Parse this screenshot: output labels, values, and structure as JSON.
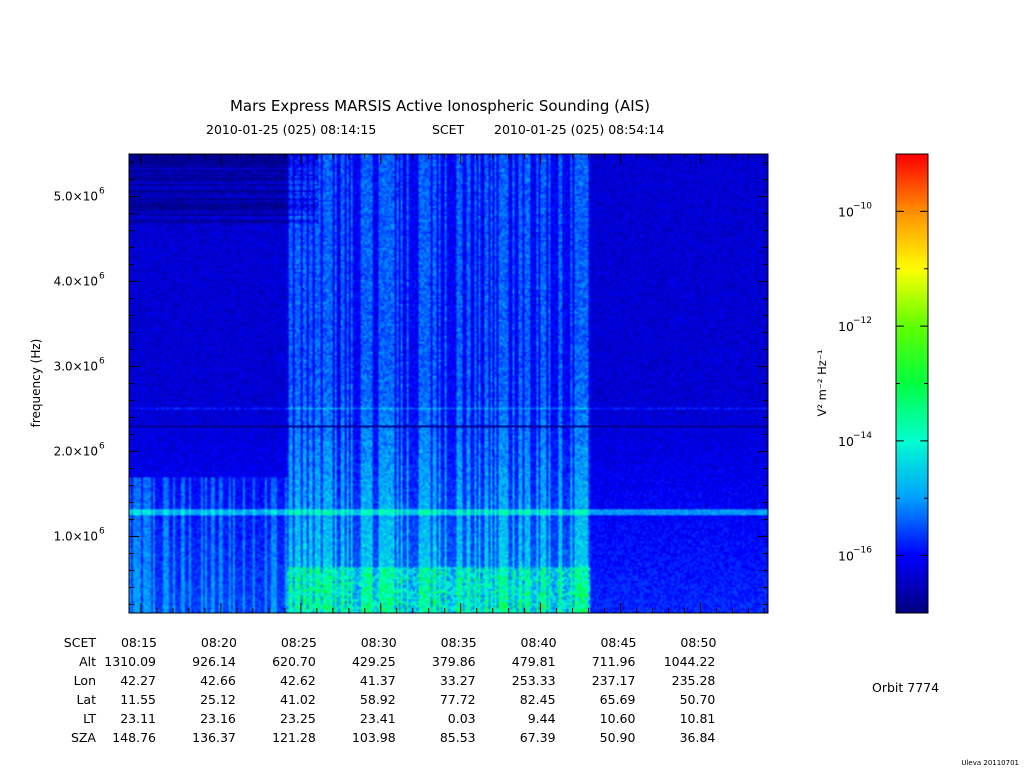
{
  "header": {
    "title": "Mars Express MARSIS Active Ionospheric Sounding (AIS)",
    "start_time": "2010-01-25 (025) 08:14:15",
    "time_system": "SCET",
    "end_time": "2010-01-25 (025) 08:54:14"
  },
  "footer": {
    "orbit": "Orbit 7774",
    "credit": "Uleva 20110701"
  },
  "chart_data": {
    "type": "heatmap",
    "title": "Mars Express MARSIS Active Ionospheric Sounding (AIS)",
    "ylabel": "frequency (Hz)",
    "ylim": [
      100000,
      5500000
    ],
    "y_ticks": [
      {
        "value": 1000000,
        "label_mant": "1.0×10",
        "label_exp": "6"
      },
      {
        "value": 2000000,
        "label_mant": "2.0×10",
        "label_exp": "6"
      },
      {
        "value": 3000000,
        "label_mant": "3.0×10",
        "label_exp": "6"
      },
      {
        "value": 4000000,
        "label_mant": "4.0×10",
        "label_exp": "6"
      },
      {
        "value": 5000000,
        "label_mant": "5.0×10",
        "label_exp": "6"
      }
    ],
    "x_start": "08:14:15",
    "x_end": "08:54:14",
    "xlim_minutes": [
      14.25,
      54.23
    ],
    "x_ticks": [
      "08:15",
      "08:20",
      "08:25",
      "08:30",
      "08:35",
      "08:40",
      "08:45",
      "08:50"
    ],
    "ephemeris_rows": [
      {
        "label": "SCET",
        "values": [
          "08:15",
          "08:20",
          "08:25",
          "08:30",
          "08:35",
          "08:40",
          "08:45",
          "08:50"
        ]
      },
      {
        "label": "Alt",
        "values": [
          "1310.09",
          "926.14",
          "620.70",
          "429.25",
          "379.86",
          "479.81",
          "711.96",
          "1044.22"
        ]
      },
      {
        "label": "Lon",
        "values": [
          "42.27",
          "42.66",
          "42.62",
          "41.37",
          "33.27",
          "253.33",
          "237.17",
          "235.28"
        ]
      },
      {
        "label": "Lat",
        "values": [
          "11.55",
          "25.12",
          "41.02",
          "58.92",
          "77.72",
          "82.45",
          "65.69",
          "50.70"
        ]
      },
      {
        "label": "LT",
        "values": [
          "23.11",
          "23.16",
          "23.25",
          "23.41",
          "0.03",
          "9.44",
          "10.60",
          "10.81"
        ]
      },
      {
        "label": "SZA",
        "values": [
          "148.76",
          "136.37",
          "121.28",
          "103.98",
          "85.53",
          "67.39",
          "50.90",
          "36.84"
        ]
      }
    ],
    "colorbar": {
      "label": "V² m⁻² Hz⁻¹",
      "scale": "log",
      "range_log10": [
        -17,
        -9
      ],
      "ticks": [
        {
          "exp": -10,
          "label_base": "10",
          "label_exp": "−10"
        },
        {
          "exp": -12,
          "label_base": "10",
          "label_exp": "−12"
        },
        {
          "exp": -14,
          "label_base": "10",
          "label_exp": "−14"
        },
        {
          "exp": -16,
          "label_base": "10",
          "label_exp": "−16"
        }
      ],
      "colors": [
        "#000080",
        "#0000ff",
        "#00a0ff",
        "#00ffd0",
        "#00ff40",
        "#60ff00",
        "#ffff00",
        "#ff9000",
        "#ff0000"
      ]
    },
    "features": {
      "background_log10": -16.6,
      "dark_line_freq_hz": 2300000,
      "bright_band_freq_hz": 1300000,
      "faint_band_freq_hz": 2520000,
      "active_interval_minutes": [
        24.0,
        43.0
      ]
    }
  }
}
